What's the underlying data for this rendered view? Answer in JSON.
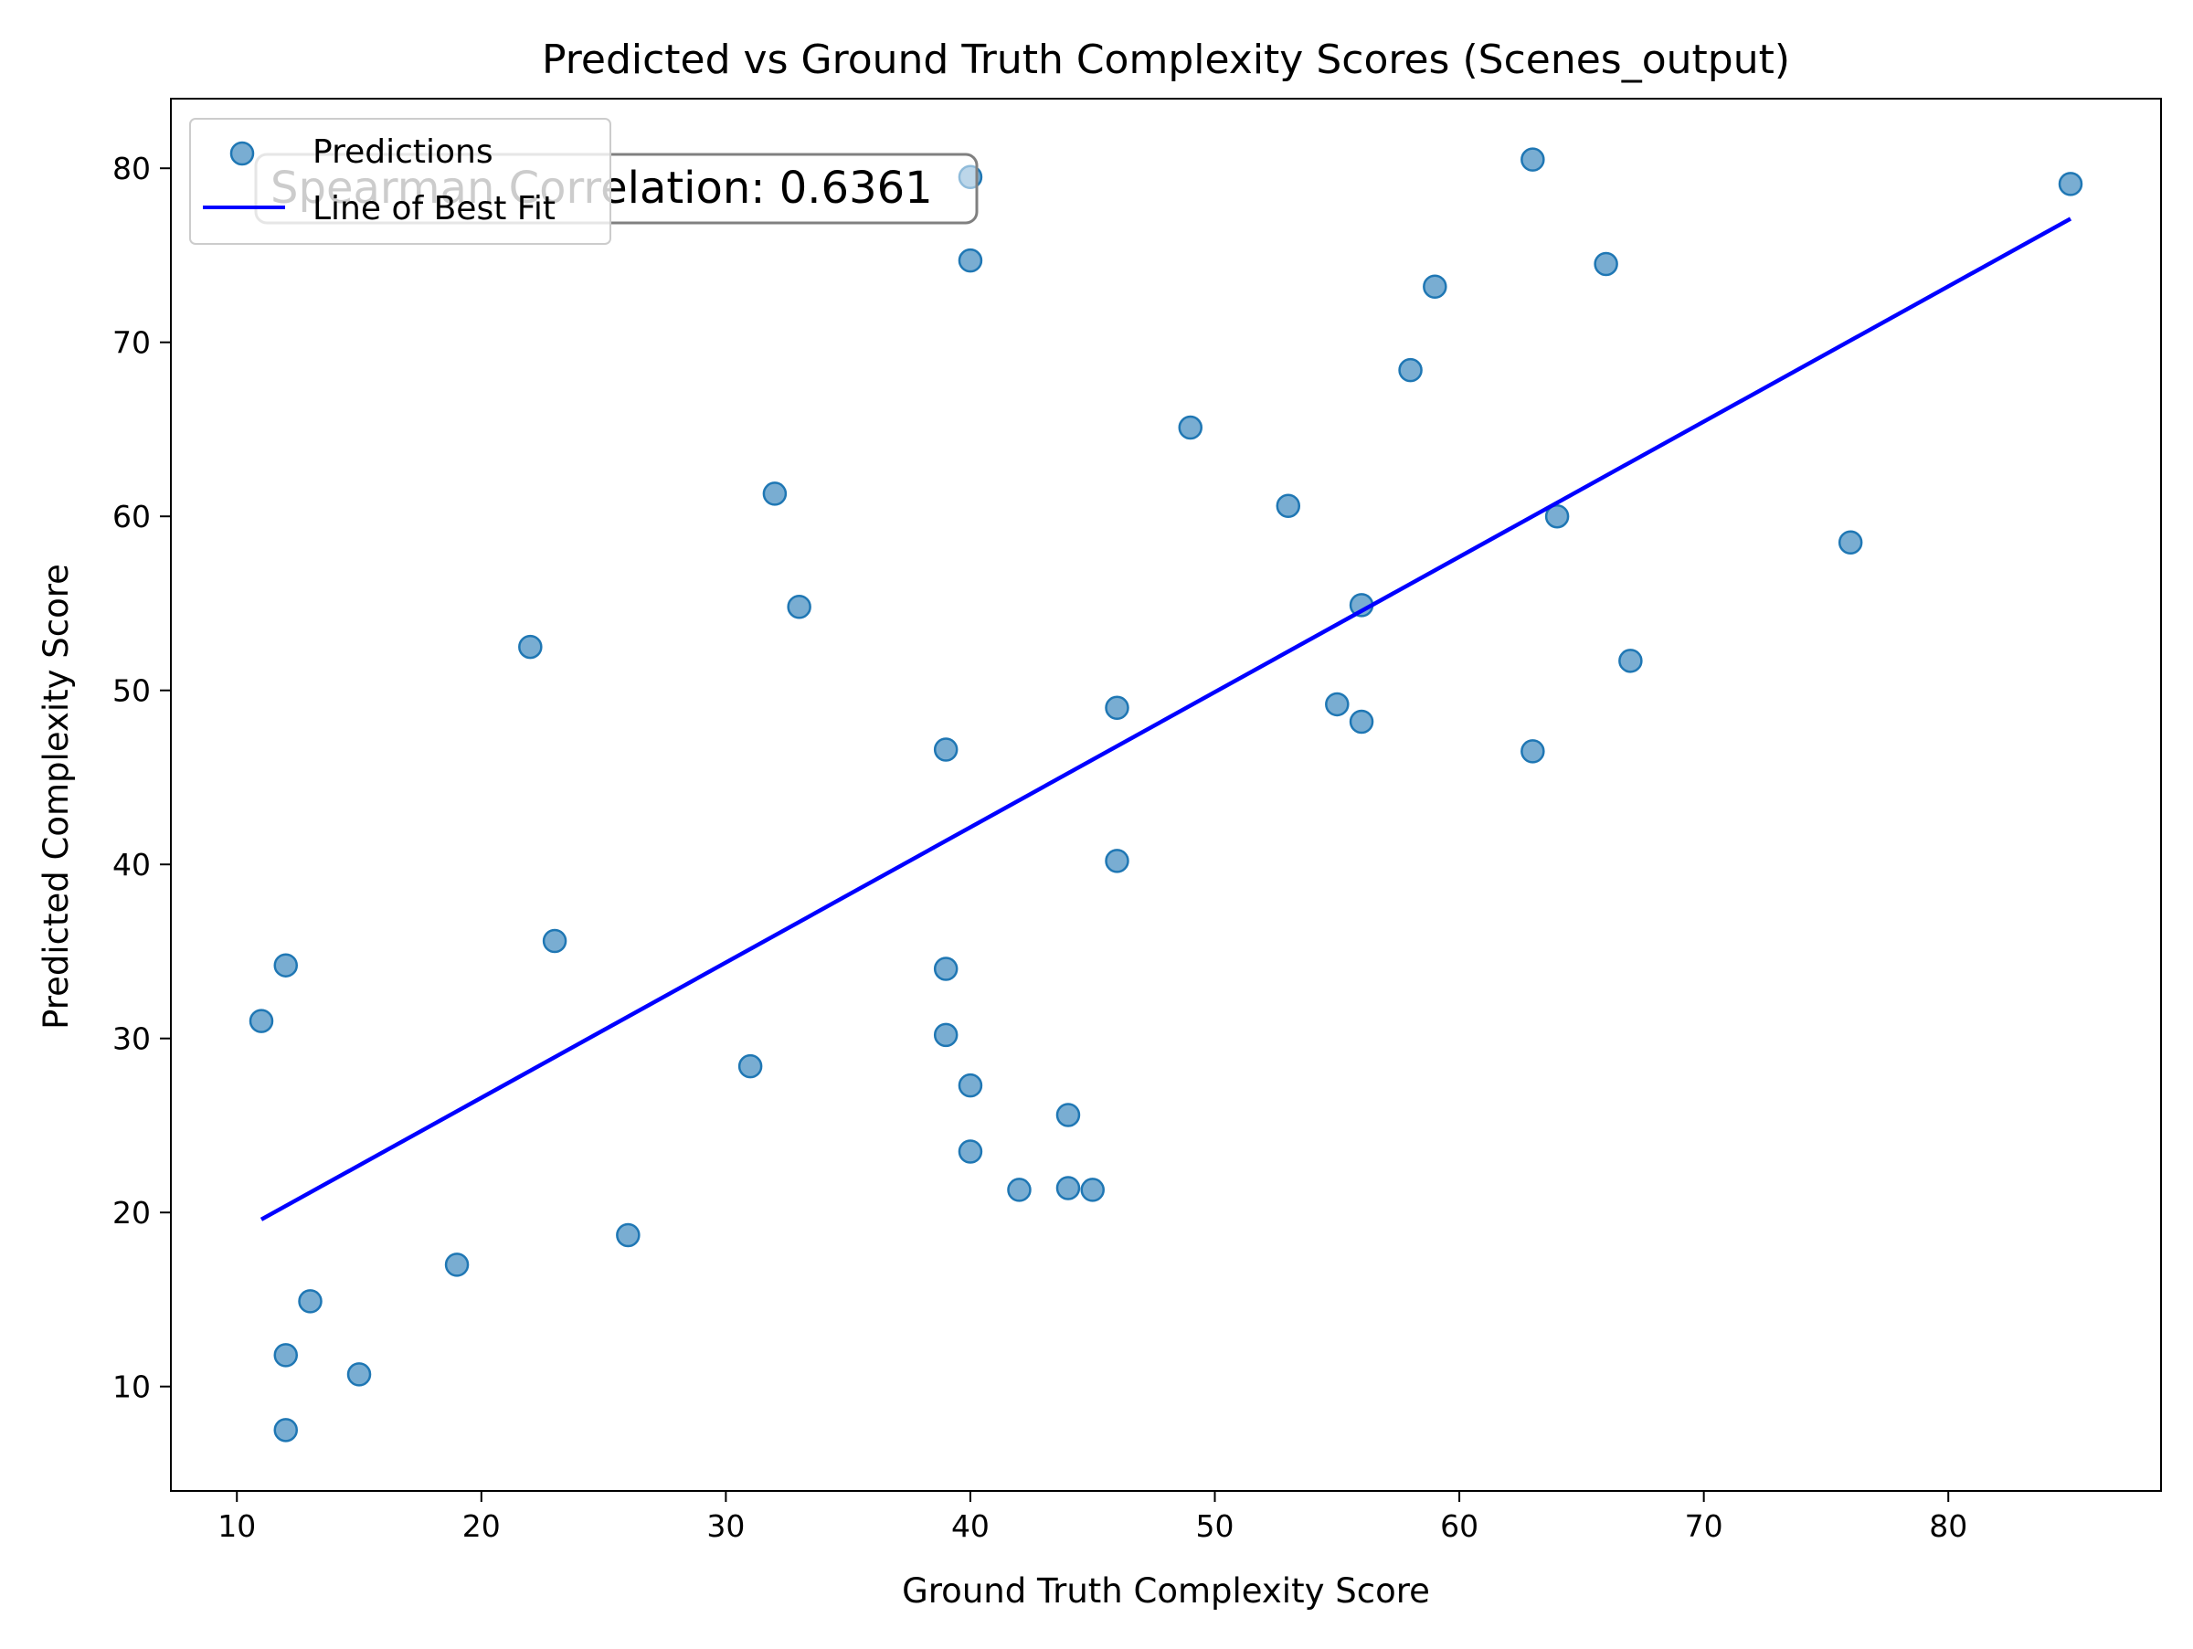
{
  "chart_data": {
    "type": "scatter",
    "title": "Predicted vs Ground Truth Complexity Scores (Scenes_output)",
    "xlabel": "Ground Truth Complexity Score",
    "ylabel": "Predicted Complexity Score",
    "xlim": [
      7.3,
      88.7
    ],
    "ylim": [
      4.0,
      84.0
    ],
    "xticks": [
      10,
      20,
      30,
      40,
      50,
      60,
      70,
      80
    ],
    "yticks": [
      10,
      20,
      30,
      40,
      50,
      60,
      70,
      80
    ],
    "grid": false,
    "legend": {
      "position": "top-left",
      "entries": [
        {
          "label": "Predictions",
          "marker": "circle",
          "color": "#1f77b4"
        },
        {
          "label": "Line of Best Fit",
          "marker": "line",
          "color": "#0000ff"
        }
      ]
    },
    "annotation": {
      "text": "Spearman Correlation: 0.6361",
      "position": "top-left"
    },
    "series": [
      {
        "name": "Predictions",
        "kind": "scatter",
        "color": "#1f77b4",
        "points": [
          {
            "x": 11,
            "y": 31.0
          },
          {
            "x": 12,
            "y": 34.2
          },
          {
            "x": 12,
            "y": 11.8
          },
          {
            "x": 12,
            "y": 7.5
          },
          {
            "x": 13,
            "y": 14.9
          },
          {
            "x": 15,
            "y": 10.7
          },
          {
            "x": 19,
            "y": 17.0
          },
          {
            "x": 22,
            "y": 52.5
          },
          {
            "x": 23,
            "y": 35.6
          },
          {
            "x": 26,
            "y": 18.7
          },
          {
            "x": 31,
            "y": 28.4
          },
          {
            "x": 32,
            "y": 61.3
          },
          {
            "x": 33,
            "y": 54.8
          },
          {
            "x": 39,
            "y": 46.6
          },
          {
            "x": 39,
            "y": 34.0
          },
          {
            "x": 39,
            "y": 30.2
          },
          {
            "x": 40,
            "y": 79.5
          },
          {
            "x": 40,
            "y": 74.7
          },
          {
            "x": 40,
            "y": 27.3
          },
          {
            "x": 40,
            "y": 23.5
          },
          {
            "x": 42,
            "y": 21.3
          },
          {
            "x": 44,
            "y": 25.6
          },
          {
            "x": 44,
            "y": 21.4
          },
          {
            "x": 45,
            "y": 21.3
          },
          {
            "x": 46,
            "y": 49.0
          },
          {
            "x": 46,
            "y": 40.2
          },
          {
            "x": 49,
            "y": 65.1
          },
          {
            "x": 53,
            "y": 60.6
          },
          {
            "x": 55,
            "y": 49.2
          },
          {
            "x": 56,
            "y": 54.9
          },
          {
            "x": 56,
            "y": 48.2
          },
          {
            "x": 58,
            "y": 68.4
          },
          {
            "x": 59,
            "y": 73.2
          },
          {
            "x": 63,
            "y": 80.5
          },
          {
            "x": 63,
            "y": 46.5
          },
          {
            "x": 64,
            "y": 60.0
          },
          {
            "x": 66,
            "y": 74.5
          },
          {
            "x": 67,
            "y": 51.7
          },
          {
            "x": 76,
            "y": 58.5
          },
          {
            "x": 85,
            "y": 79.1
          }
        ]
      },
      {
        "name": "Line of Best Fit",
        "kind": "line",
        "color": "#0000ff",
        "points": [
          {
            "x": 11,
            "y": 19.6
          },
          {
            "x": 85,
            "y": 77.1
          }
        ]
      }
    ]
  }
}
